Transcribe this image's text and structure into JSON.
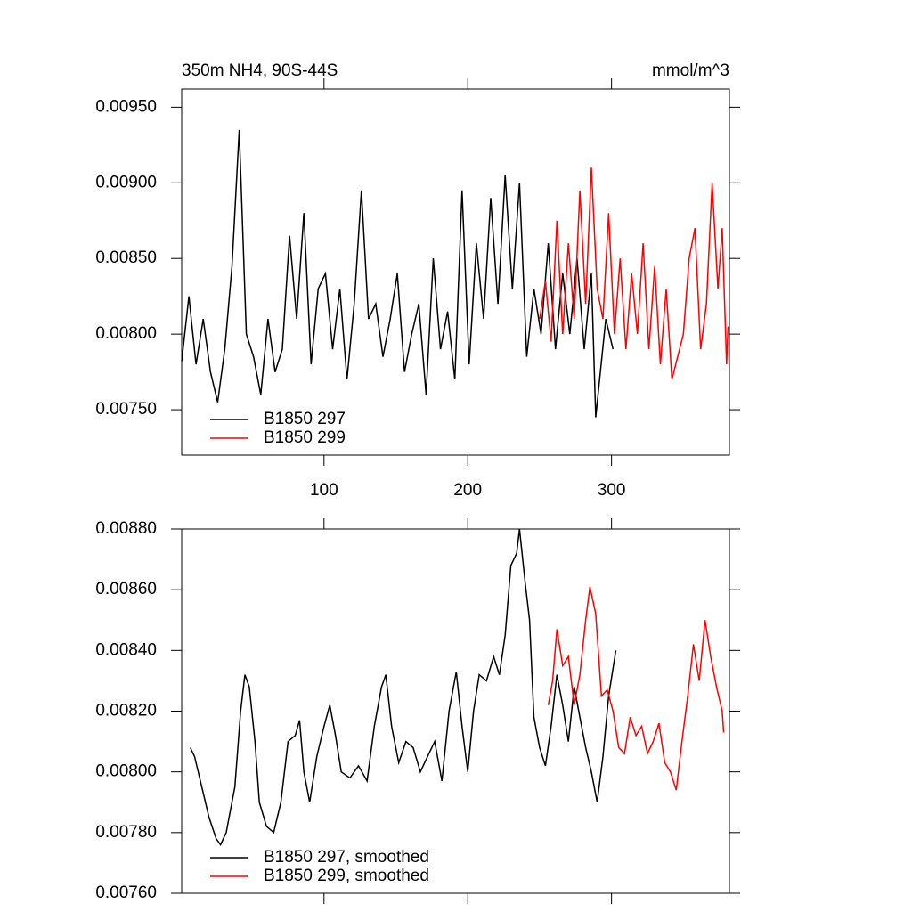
{
  "chart_data": [
    {
      "type": "line",
      "title": "350m NH4, 90S-44S",
      "subtitle": "mmol/m^3",
      "xlim": [
        1,
        382
      ],
      "xticks": [
        100,
        200,
        300
      ],
      "ylim": [
        0.0072,
        0.00962
      ],
      "yticks": [
        {
          "value": 0.0075,
          "label": "0.00750"
        },
        {
          "value": 0.008,
          "label": "0.00800"
        },
        {
          "value": 0.0085,
          "label": "0.00850"
        },
        {
          "value": 0.009,
          "label": "0.00900"
        },
        {
          "value": 0.0095,
          "label": "0.00950"
        }
      ],
      "legend": "lower left",
      "series": [
        {
          "name": "B1850 297",
          "color": "#000000",
          "x": [
            1,
            6,
            11,
            16,
            21,
            26,
            31,
            36,
            41,
            46,
            51,
            56,
            61,
            66,
            71,
            76,
            81,
            86,
            91,
            96,
            101,
            106,
            111,
            116,
            121,
            126,
            131,
            136,
            141,
            146,
            151,
            156,
            161,
            166,
            171,
            176,
            181,
            186,
            191,
            196,
            201,
            206,
            211,
            216,
            221,
            226,
            231,
            236,
            241,
            246,
            251,
            256,
            261,
            266,
            271,
            276,
            281,
            286,
            289,
            296,
            301
          ],
          "values": [
            0.00782,
            0.00825,
            0.0078,
            0.0081,
            0.00775,
            0.00755,
            0.0079,
            0.00845,
            0.00935,
            0.008,
            0.00785,
            0.0076,
            0.0081,
            0.00775,
            0.0079,
            0.00865,
            0.0081,
            0.0088,
            0.0078,
            0.0083,
            0.0084,
            0.0079,
            0.0083,
            0.0077,
            0.0082,
            0.00895,
            0.0081,
            0.0082,
            0.00785,
            0.0081,
            0.0084,
            0.00775,
            0.008,
            0.0082,
            0.0076,
            0.0085,
            0.0079,
            0.00815,
            0.0077,
            0.00895,
            0.0078,
            0.0086,
            0.0081,
            0.0089,
            0.0082,
            0.00905,
            0.0083,
            0.009,
            0.00785,
            0.0083,
            0.008,
            0.0086,
            0.0079,
            0.0084,
            0.008,
            0.0085,
            0.0079,
            0.0084,
            0.00745,
            0.0081,
            0.0079
          ]
        },
        {
          "name": "B1850 299",
          "color": "#ff0000",
          "x": [
            250,
            254,
            258,
            262,
            266,
            270,
            274,
            278,
            282,
            286,
            290,
            294,
            298,
            302,
            306,
            310,
            314,
            318,
            322,
            326,
            330,
            334,
            338,
            342,
            346,
            350,
            354,
            358,
            362,
            366,
            370,
            374,
            377,
            380,
            381
          ],
          "values": [
            0.0081,
            0.00835,
            0.00795,
            0.00875,
            0.008,
            0.0086,
            0.0081,
            0.00895,
            0.0082,
            0.0091,
            0.0083,
            0.0081,
            0.0088,
            0.008,
            0.0085,
            0.0079,
            0.0084,
            0.008,
            0.0086,
            0.0079,
            0.00845,
            0.0078,
            0.0083,
            0.0077,
            0.00785,
            0.008,
            0.0085,
            0.0087,
            0.0079,
            0.0082,
            0.009,
            0.0083,
            0.0087,
            0.0078,
            0.00805
          ]
        }
      ]
    },
    {
      "type": "line",
      "xlim": [
        1,
        382
      ],
      "xticks": [
        100,
        200,
        300
      ],
      "ylim": [
        0.0076,
        0.0088
      ],
      "yticks": [
        {
          "value": 0.0076,
          "label": "0.00760"
        },
        {
          "value": 0.0078,
          "label": "0.00780"
        },
        {
          "value": 0.008,
          "label": "0.00800"
        },
        {
          "value": 0.0082,
          "label": "0.00820"
        },
        {
          "value": 0.0084,
          "label": "0.00840"
        },
        {
          "value": 0.0086,
          "label": "0.00860"
        },
        {
          "value": 0.0088,
          "label": "0.00880"
        }
      ],
      "legend": "lower left",
      "series": [
        {
          "name": "B1850 297, smoothed",
          "color": "#000000",
          "x": [
            7,
            10,
            15,
            20,
            25,
            28,
            32,
            38,
            42,
            45,
            48,
            52,
            55,
            60,
            65,
            70,
            75,
            80,
            83,
            86,
            90,
            95,
            100,
            104,
            108,
            112,
            118,
            124,
            130,
            135,
            140,
            143,
            147,
            152,
            157,
            162,
            167,
            172,
            177,
            182,
            187,
            192,
            196,
            200,
            204,
            208,
            213,
            218,
            222,
            226,
            230,
            234,
            236,
            240,
            243,
            246,
            250,
            254,
            258,
            262,
            266,
            270,
            274,
            278,
            282,
            286,
            290,
            294,
            298,
            303
          ],
          "values": [
            0.00808,
            0.00805,
            0.00795,
            0.00785,
            0.00778,
            0.00776,
            0.0078,
            0.00795,
            0.0082,
            0.00832,
            0.00828,
            0.0081,
            0.0079,
            0.00782,
            0.0078,
            0.0079,
            0.0081,
            0.00812,
            0.00817,
            0.008,
            0.0079,
            0.00805,
            0.00815,
            0.00822,
            0.00812,
            0.008,
            0.00798,
            0.00802,
            0.00797,
            0.00815,
            0.00828,
            0.00832,
            0.00815,
            0.00803,
            0.0081,
            0.00808,
            0.008,
            0.00805,
            0.0081,
            0.00797,
            0.0082,
            0.00833,
            0.00815,
            0.008,
            0.0082,
            0.00832,
            0.0083,
            0.00838,
            0.00832,
            0.00845,
            0.00868,
            0.00872,
            0.0088,
            0.00862,
            0.0085,
            0.00818,
            0.00808,
            0.00802,
            0.00815,
            0.00832,
            0.00822,
            0.0081,
            0.00828,
            0.00818,
            0.00808,
            0.008,
            0.0079,
            0.00805,
            0.00825,
            0.0084
          ]
        },
        {
          "name": "B1850 299, smoothed",
          "color": "#ff0000",
          "x": [
            256,
            259,
            262,
            266,
            270,
            274,
            278,
            282,
            285,
            289,
            293,
            297,
            301,
            305,
            309,
            313,
            317,
            321,
            325,
            329,
            333,
            337,
            341,
            345,
            349,
            353,
            357,
            361,
            365,
            369,
            373,
            377,
            378
          ],
          "values": [
            0.00822,
            0.0083,
            0.00847,
            0.00835,
            0.00838,
            0.00822,
            0.00832,
            0.0085,
            0.00861,
            0.00852,
            0.00825,
            0.00827,
            0.0082,
            0.00808,
            0.00806,
            0.00818,
            0.00812,
            0.00815,
            0.00806,
            0.0081,
            0.00816,
            0.00803,
            0.008,
            0.00794,
            0.0081,
            0.00825,
            0.00842,
            0.0083,
            0.0085,
            0.00838,
            0.00828,
            0.0082,
            0.00813
          ]
        }
      ]
    }
  ]
}
